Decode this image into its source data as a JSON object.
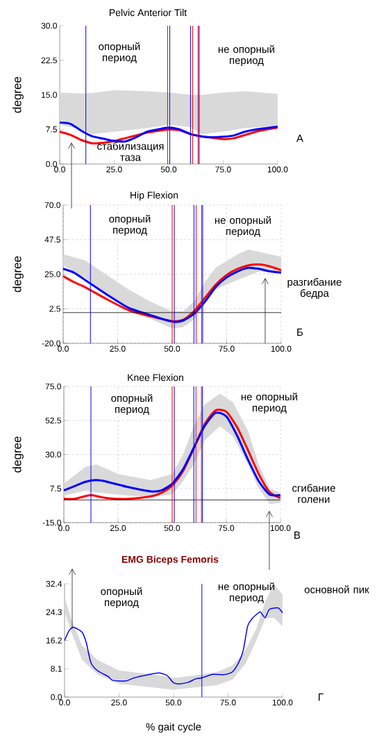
{
  "chart_data": [
    {
      "type": "line",
      "title": "Pelvic Anterior Tilt",
      "ylabel": "degree",
      "xlim": [
        0,
        100
      ],
      "ylim": [
        0,
        30
      ],
      "xticks": [
        {
          "value": 0,
          "label": "0.0"
        },
        {
          "value": 25,
          "label": "25.0"
        },
        {
          "value": 50,
          "label": "50.0"
        },
        {
          "value": 75,
          "label": "75.0"
        },
        {
          "value": 100,
          "label": "100.0"
        }
      ],
      "yticks": [
        {
          "value": 0,
          "label": "0.0"
        },
        {
          "value": 7.5,
          "label": "7.5"
        },
        {
          "value": 15,
          "label": "15.0"
        },
        {
          "value": 22.5,
          "label": "22.5"
        },
        {
          "value": 30,
          "label": "30.0"
        }
      ],
      "grid": false,
      "series": [
        {
          "color": "#d9d9d9",
          "x": [
            0,
            10,
            15,
            25,
            40,
            50,
            60,
            65,
            75,
            85,
            100
          ],
          "values": [
            null,
            null,
            null,
            null,
            null,
            null,
            null,
            null,
            null,
            null,
            null
          ],
          "lower": [
            8.5,
            7.5,
            6.5,
            7.0,
            7.8,
            8.5,
            8.0,
            6.5,
            7.0,
            7.8,
            8.2
          ],
          "upper": [
            15.5,
            15.3,
            15.4,
            16.0,
            15.8,
            15.5,
            15.0,
            15.0,
            15.5,
            15.8,
            15.2
          ]
        },
        {
          "color": "#ff0000",
          "x": [
            0,
            5,
            10,
            15,
            20,
            25,
            30,
            35,
            40,
            45,
            50,
            55,
            60,
            65,
            70,
            75,
            80,
            85,
            90,
            95,
            100
          ],
          "values": [
            7.0,
            6.3,
            5.2,
            4.5,
            4.6,
            5.0,
            5.6,
            6.2,
            6.8,
            7.2,
            7.5,
            7.3,
            6.5,
            6.0,
            5.7,
            5.4,
            5.6,
            6.3,
            7.0,
            7.5,
            7.9
          ]
        },
        {
          "color": "#0000ff",
          "x": [
            0,
            5,
            10,
            15,
            20,
            25,
            30,
            35,
            40,
            45,
            50,
            55,
            60,
            65,
            70,
            75,
            80,
            85,
            90,
            95,
            100
          ],
          "values": [
            9.0,
            8.7,
            7.2,
            6.0,
            5.5,
            5.0,
            4.9,
            5.8,
            7.0,
            7.5,
            7.9,
            7.5,
            6.5,
            6.0,
            5.8,
            5.9,
            6.2,
            7.0,
            7.5,
            7.8,
            8.1
          ]
        }
      ],
      "ref_lines": [
        {
          "axis": "x",
          "value": 12,
          "color": "#0000ff"
        },
        {
          "axis": "x",
          "value": 49.5,
          "color": "#ff0000"
        },
        {
          "axis": "x",
          "value": 50.5,
          "color": "#0000ff"
        },
        {
          "axis": "x",
          "value": 60,
          "color": "#0000ff"
        },
        {
          "axis": "x",
          "value": 61,
          "color": "#ff0000"
        },
        {
          "axis": "x",
          "value": 63.5,
          "color": "#ff0000"
        },
        {
          "axis": "x",
          "value": 64,
          "color": "#0000ff"
        }
      ],
      "annotations": [
        "опорный период",
        "не опорный период",
        "стабилизация таза",
        "А"
      ]
    },
    {
      "type": "line",
      "title": "Hip Flexion",
      "ylabel": "degree",
      "xlim": [
        0,
        100
      ],
      "ylim": [
        -20,
        70
      ],
      "xticks": [
        {
          "value": 0,
          "label": "0.0"
        },
        {
          "value": 25,
          "label": "25.0"
        },
        {
          "value": 50,
          "label": "50.0"
        },
        {
          "value": 75,
          "label": "75.0"
        },
        {
          "value": 100,
          "label": "100.0"
        }
      ],
      "yticks": [
        {
          "value": -20,
          "label": "-20.0"
        },
        2.5,
        {
          "value": 25,
          "label": "25.0"
        },
        47.5,
        {
          "value": 70,
          "label": "70.0"
        }
      ],
      "grid": true,
      "series": [
        {
          "color": "#d9d9d9",
          "x": [
            0,
            10,
            20,
            30,
            40,
            50,
            55,
            60,
            65,
            70,
            80,
            85,
            90,
            100
          ],
          "values": [
            null,
            null,
            null,
            null,
            null,
            null,
            null,
            null,
            null,
            null,
            null,
            null,
            null,
            null
          ],
          "lower": [
            30.8,
            22.9,
            11.8,
            2.4,
            -4.0,
            -10.3,
            -9.5,
            -4.7,
            5.6,
            15.0,
            21.3,
            24.0,
            26.8,
            25.3
          ],
          "upper": [
            37.9,
            34.0,
            24.5,
            15.0,
            7.1,
            0.8,
            0.8,
            7.1,
            19.8,
            29.2,
            37.9,
            41.1,
            39.5,
            36.3
          ]
        },
        {
          "color": "#ff0000",
          "x": [
            0,
            5,
            10,
            20,
            30,
            40,
            50,
            55,
            60,
            65,
            70,
            75,
            80,
            85,
            90,
            95,
            100
          ],
          "values": [
            23.7,
            19.8,
            16.6,
            8.7,
            1.6,
            -2.4,
            -5.5,
            -4.7,
            0.8,
            9.5,
            18.2,
            24.5,
            28.4,
            30.8,
            31.3,
            30.0,
            27.6
          ]
        },
        {
          "color": "#0000ff",
          "x": [
            0,
            5,
            10,
            20,
            30,
            40,
            50,
            55,
            60,
            65,
            70,
            75,
            80,
            85,
            90,
            95,
            100
          ],
          "values": [
            28.5,
            26.0,
            21.3,
            11.8,
            3.1,
            -1.6,
            -5.9,
            -5.2,
            -0.8,
            7.1,
            16.6,
            22.9,
            26.8,
            29.2,
            28.4,
            26.8,
            26.0
          ]
        }
      ],
      "ref_lines": [
        {
          "axis": "y",
          "value": 0,
          "color": "#000000"
        },
        {
          "axis": "x",
          "value": 12.5,
          "color": "#0000ff"
        },
        {
          "axis": "x",
          "value": 50,
          "color": "#ff0000"
        },
        {
          "axis": "x",
          "value": 51,
          "color": "#0000ff"
        },
        {
          "axis": "x",
          "value": 60,
          "color": "#0000ff"
        },
        {
          "axis": "x",
          "value": 61,
          "color": "#ff0000"
        },
        {
          "axis": "x",
          "value": 63.5,
          "color": "#ff0000"
        },
        {
          "axis": "x",
          "value": 64,
          "color": "#0000ff"
        }
      ],
      "annotations": [
        "опорный период",
        "не опорный период",
        "разгибание бедра",
        "Б"
      ]
    },
    {
      "type": "line",
      "title": "Knee Flexion",
      "ylabel": "degree",
      "xlim": [
        0,
        100
      ],
      "ylim": [
        -15,
        75
      ],
      "xticks": [
        {
          "value": 0,
          "label": "0.0"
        },
        {
          "value": 25,
          "label": "25.0"
        },
        {
          "value": 50,
          "label": "50.0"
        },
        {
          "value": 75,
          "label": "75.0"
        },
        {
          "value": 100,
          "label": "100.0"
        }
      ],
      "yticks": [
        {
          "value": -15,
          "label": "-15.0"
        },
        7.5,
        {
          "value": 30,
          "label": "30.0"
        },
        52.5,
        {
          "value": 75,
          "label": "75.0"
        }
      ],
      "grid": true,
      "series": [
        {
          "color": "#d9d9d9",
          "x": [
            0,
            10,
            15,
            25,
            40,
            50,
            55,
            60,
            65,
            72,
            78,
            85,
            90,
            95,
            100
          ],
          "values": [
            null,
            null,
            null,
            null,
            null,
            null,
            null,
            null,
            null,
            null,
            null,
            null,
            null,
            null,
            null
          ],
          "lower": [
            2.8,
            6.0,
            5.0,
            3.5,
            1.8,
            3.6,
            12.3,
            23.5,
            39.3,
            48.8,
            42.0,
            23.5,
            7.6,
            -2.7,
            -1.9
          ],
          "upper": [
            10.8,
            21.9,
            23.5,
            17.1,
            13.1,
            17.1,
            29.8,
            48.8,
            63.1,
            70.2,
            64.7,
            45.6,
            23.5,
            7.6,
            4.4
          ]
        },
        {
          "color": "#ff0000",
          "x": [
            0,
            5,
            10,
            13,
            20,
            30,
            40,
            45,
            50,
            55,
            60,
            65,
            70,
            75,
            80,
            85,
            90,
            95,
            100
          ],
          "values": [
            0.7,
            0.7,
            2.6,
            3.1,
            1.2,
            0.7,
            2.3,
            4.7,
            9.5,
            19.0,
            34.1,
            50.0,
            59.1,
            58.3,
            48.0,
            32.9,
            17.1,
            5.2,
            1.2
          ]
        },
        {
          "color": "#0000ff",
          "x": [
            0,
            5,
            10,
            15,
            20,
            30,
            40,
            45,
            50,
            55,
            60,
            65,
            70,
            75,
            80,
            85,
            90,
            95,
            100
          ],
          "values": [
            6.3,
            9.2,
            12.0,
            13.1,
            12.0,
            8.4,
            5.7,
            6.3,
            10.7,
            20.2,
            34.5,
            48.8,
            57.5,
            55.2,
            42.5,
            26.6,
            12.3,
            3.6,
            3.1
          ]
        }
      ],
      "ref_lines": [
        {
          "axis": "y",
          "value": 0,
          "color": "#000000"
        },
        {
          "axis": "x",
          "value": 12.5,
          "color": "#0000ff"
        },
        {
          "axis": "x",
          "value": 50,
          "color": "#ff0000"
        },
        {
          "axis": "x",
          "value": 51,
          "color": "#0000ff"
        },
        {
          "axis": "x",
          "value": 60,
          "color": "#0000ff"
        },
        {
          "axis": "x",
          "value": 61,
          "color": "#ff0000"
        },
        {
          "axis": "x",
          "value": 63.5,
          "color": "#ff0000"
        },
        {
          "axis": "x",
          "value": 64,
          "color": "#0000ff"
        }
      ],
      "annotations": [
        "опорный период",
        "не опорный период",
        "сгибание голени",
        "В"
      ]
    },
    {
      "type": "line",
      "title": "EMG Biceps Femoris",
      "xlabel": "% gait cycle",
      "xlim": [
        0,
        100
      ],
      "ylim": [
        0,
        32.4
      ],
      "xticks": [
        {
          "value": 0,
          "label": "0.0"
        },
        {
          "value": 25,
          "label": "25.0"
        },
        {
          "value": 50,
          "label": "50.0"
        },
        {
          "value": 75,
          "label": "75.0"
        },
        {
          "value": 100,
          "label": "100.0"
        }
      ],
      "yticks": [
        {
          "value": 0,
          "label": "0.0"
        },
        8.1,
        16.2,
        24.3,
        32.4
      ],
      "grid": false,
      "series": [
        {
          "color": "#d9d9d9",
          "x": [
            0,
            3,
            8,
            15,
            25,
            40,
            50,
            60,
            70,
            77,
            83,
            88,
            92,
            96,
            100
          ],
          "values": [
            null,
            null,
            null,
            null,
            null,
            null,
            null,
            null,
            null,
            null,
            null,
            null,
            null,
            null,
            null
          ],
          "lower": [
            24.5,
            18.9,
            10.7,
            6.5,
            3.8,
            2.8,
            2.1,
            2.8,
            3.4,
            5.0,
            9.5,
            16.2,
            22.4,
            22.7,
            20.3
          ],
          "upper": [
            28.6,
            22.4,
            14.8,
            10.7,
            7.6,
            6.5,
            5.5,
            6.2,
            7.2,
            9.0,
            13.4,
            19.6,
            27.2,
            32.4,
            29.3
          ]
        },
        {
          "color": "#0000ff",
          "x": [
            0,
            2,
            4,
            8,
            10,
            12,
            15,
            20,
            22,
            28,
            32,
            37,
            43,
            47,
            50,
            53,
            57,
            60,
            63,
            68,
            73,
            77,
            80,
            82,
            84,
            86,
            89,
            90,
            92,
            94,
            98,
            100
          ],
          "values": [
            16.2,
            18.9,
            20.0,
            18.6,
            15.5,
            10.0,
            7.6,
            5.9,
            4.8,
            4.6,
            5.5,
            6.2,
            6.9,
            6.2,
            4.1,
            3.8,
            4.3,
            5.2,
            5.5,
            6.5,
            6.4,
            7.2,
            10.0,
            13.4,
            20.3,
            22.4,
            24.1,
            24.3,
            22.7,
            25.1,
            25.5,
            24.1
          ]
        }
      ],
      "ref_lines": [
        {
          "axis": "x",
          "value": 63,
          "color": "#0000ff"
        }
      ],
      "annotations": [
        "опорный период",
        "не опорный период",
        "основной пик",
        "Г"
      ]
    }
  ]
}
